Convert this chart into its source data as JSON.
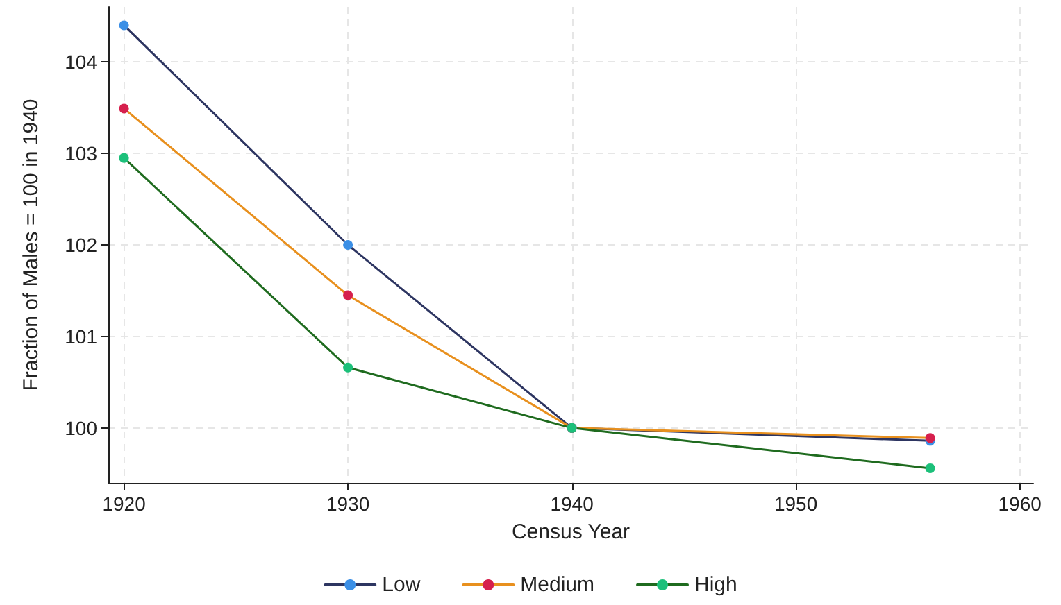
{
  "chart_data": {
    "type": "line",
    "xlabel": "Census Year",
    "ylabel": "Fraction of Males = 100 in 1940",
    "x": [
      1920,
      1930,
      1940,
      1956
    ],
    "series": [
      {
        "name": "Low",
        "color": "#2d3561",
        "colors": [
          "#3b8fe6",
          "#3b8fe6",
          "#3b8fe6",
          "#3b8fe6"
        ],
        "values": [
          104.4,
          102.0,
          100,
          99.86
        ]
      },
      {
        "name": "Medium",
        "color": "#e8901e",
        "colors": [
          "#d6204d",
          "#d6204d",
          "#d6204d",
          "#d6204d"
        ],
        "values": [
          103.49,
          101.45,
          100,
          99.89
        ]
      },
      {
        "name": "High",
        "color": "#1f6b1f",
        "colors": [
          "#1cc07a",
          "#1cc07a",
          "#1cc07a",
          "#1cc07a"
        ],
        "values": [
          102.95,
          100.66,
          100,
          99.56
        ]
      }
    ],
    "xlim": [
      1919.3,
      1960.6
    ],
    "xticks": [
      1920,
      1930,
      1940,
      1950,
      1960
    ],
    "ylim": [
      99.4,
      104.6
    ],
    "yticks": [
      100,
      101,
      102,
      103,
      104
    ],
    "grid": true,
    "legend": "bottom",
    "marker": "circle",
    "line_style": "solid"
  }
}
